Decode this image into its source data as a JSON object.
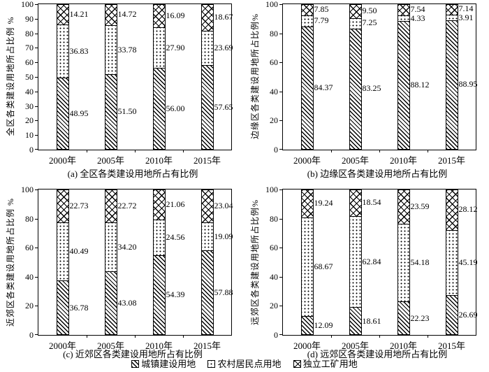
{
  "colors": {
    "ink": "#000000",
    "paper": "#ffffff"
  },
  "legend": {
    "items": [
      {
        "label": "城镇建设用地",
        "pattern": "diagonal-hatch"
      },
      {
        "label": "农村居民点用地",
        "pattern": "dots"
      },
      {
        "label": "独立工矿用地",
        "pattern": "cross-hatch"
      }
    ]
  },
  "chart_data": [
    {
      "type": "bar",
      "stacked": true,
      "caption": "(a) 全区各类建设用地所占有比例",
      "ylabel": "全区各类建设用地所占比例 %",
      "ylim": [
        0,
        100
      ],
      "ytick_step": 10,
      "grid": false,
      "categories": [
        "2000年",
        "2005年",
        "2010年",
        "2015年"
      ],
      "series": [
        {
          "name": "城镇建设用地",
          "pattern": "diagonal-hatch",
          "values": [
            48.95,
            51.5,
            56.0,
            57.65
          ]
        },
        {
          "name": "农村居民点用地",
          "pattern": "dots",
          "values": [
            36.83,
            33.78,
            27.9,
            23.69
          ]
        },
        {
          "name": "独立工矿用地",
          "pattern": "cross-hatch",
          "values": [
            14.21,
            14.72,
            16.09,
            18.67
          ]
        }
      ]
    },
    {
      "type": "bar",
      "stacked": true,
      "caption": "(b) 边缘区各类建设用地所占有比例",
      "ylabel": "边缘区各类建设用地所占比例%",
      "ylim": [
        0,
        100
      ],
      "ytick_step": 20,
      "grid": false,
      "categories": [
        "2000年",
        "2005年",
        "2010年",
        "2015年"
      ],
      "series": [
        {
          "name": "城镇建设用地",
          "pattern": "diagonal-hatch",
          "values": [
            84.37,
            83.25,
            88.12,
            88.95
          ]
        },
        {
          "name": "农村居民点用地",
          "pattern": "dots",
          "values": [
            7.79,
            7.25,
            4.33,
            3.91
          ]
        },
        {
          "name": "独立工矿用地",
          "pattern": "cross-hatch",
          "values": [
            7.85,
            9.5,
            7.54,
            7.14
          ]
        }
      ]
    },
    {
      "type": "bar",
      "stacked": true,
      "caption": "(c) 近郊区各类建设用地所占有比例",
      "ylabel": "近郊区各类建设用地所占比例 %",
      "ylim": [
        0,
        100
      ],
      "ytick_step": 20,
      "grid": false,
      "categories": [
        "2000年",
        "2005年",
        "2010年",
        "2015年"
      ],
      "series": [
        {
          "name": "城镇建设用地",
          "pattern": "diagonal-hatch",
          "values": [
            36.78,
            43.08,
            54.39,
            57.88
          ]
        },
        {
          "name": "农村居民点用地",
          "pattern": "dots",
          "values": [
            40.49,
            34.2,
            24.56,
            19.09
          ]
        },
        {
          "name": "独立工矿用地",
          "pattern": "cross-hatch",
          "values": [
            22.73,
            22.72,
            21.06,
            23.04
          ]
        }
      ]
    },
    {
      "type": "bar",
      "stacked": true,
      "caption": "(d) 远郊区各类建设用地所占有比例",
      "ylabel": "远郊区各类建设用地所占比例%",
      "ylim": [
        0,
        100
      ],
      "ytick_step": 20,
      "grid": false,
      "categories": [
        "2000年",
        "2005年",
        "2010年",
        "2015年"
      ],
      "series": [
        {
          "name": "城镇建设用地",
          "pattern": "diagonal-hatch",
          "values": [
            12.09,
            18.61,
            22.23,
            26.69
          ]
        },
        {
          "name": "农村居民点用地",
          "pattern": "dots",
          "values": [
            68.67,
            62.84,
            54.18,
            45.19
          ]
        },
        {
          "name": "独立工矿用地",
          "pattern": "cross-hatch",
          "values": [
            19.24,
            18.54,
            23.59,
            28.12
          ]
        }
      ]
    }
  ]
}
